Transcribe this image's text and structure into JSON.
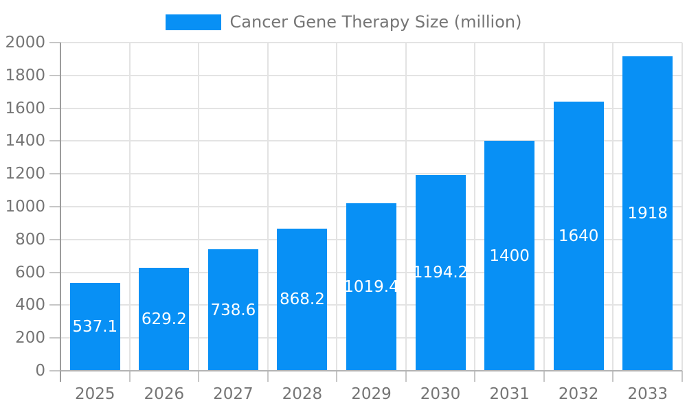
{
  "legend": {
    "label": "Cancer Gene Therapy Size (million)"
  },
  "chart_data": {
    "type": "bar",
    "title": "Cancer Gene Therapy Size (million)",
    "categories": [
      "2025",
      "2026",
      "2027",
      "2028",
      "2029",
      "2030",
      "2031",
      "2032",
      "2033"
    ],
    "values": [
      537.1,
      629.2,
      738.6,
      868.2,
      1019.4,
      1194.2,
      1400,
      1640,
      1918
    ],
    "bar_labels": [
      "537.1",
      "629.2",
      "738.6",
      "868.2",
      "1019.4",
      "1194.2",
      "1400",
      "1640",
      "1918"
    ],
    "xlabel": "",
    "ylabel": "",
    "ylim": [
      0,
      2000
    ],
    "ytick_step": 200,
    "grid": true,
    "legend_position": "top-center",
    "colors": {
      "bar": "#0890F5",
      "bar_label": "#FFFFFF",
      "axis_text": "#757575",
      "gridline": "#E3E3E3",
      "axis_line": "#9C9C9C",
      "baseline": "#B3B3B3",
      "tick": "#C6C6C6",
      "background": "#FFFFFF"
    }
  }
}
